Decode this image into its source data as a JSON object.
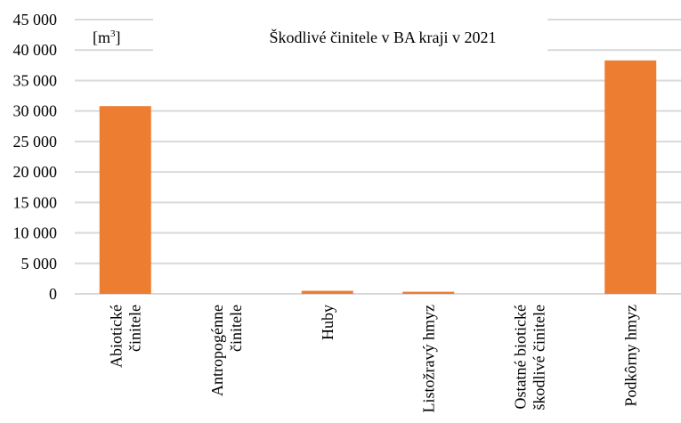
{
  "chart_data": {
    "type": "bar",
    "title": "Škodlivé činitele v BA kraji v 2021",
    "unit_label": "[m³]",
    "categories": [
      [
        "Abiotické",
        "činitele"
      ],
      [
        "Antropogénne",
        "činitele"
      ],
      [
        "Huby"
      ],
      [
        "Listožravý hmyz"
      ],
      [
        "Ostatné biotické",
        "škodlivé činitele"
      ],
      [
        "Podkôrny hmyz"
      ]
    ],
    "values": [
      30800,
      0,
      500,
      350,
      0,
      38300
    ],
    "ylim": [
      0,
      45000
    ],
    "yticks": [
      0,
      5000,
      10000,
      15000,
      20000,
      25000,
      30000,
      35000,
      40000,
      45000
    ],
    "ytick_labels": [
      "0",
      "5 000",
      "10 000",
      "15 000",
      "20 000",
      "25 000",
      "30 000",
      "35 000",
      "40 000",
      "45 000"
    ],
    "grid": true,
    "legend": "none",
    "colors": {
      "bar": "#ED7D31",
      "grid": "#D9D9D9"
    }
  }
}
